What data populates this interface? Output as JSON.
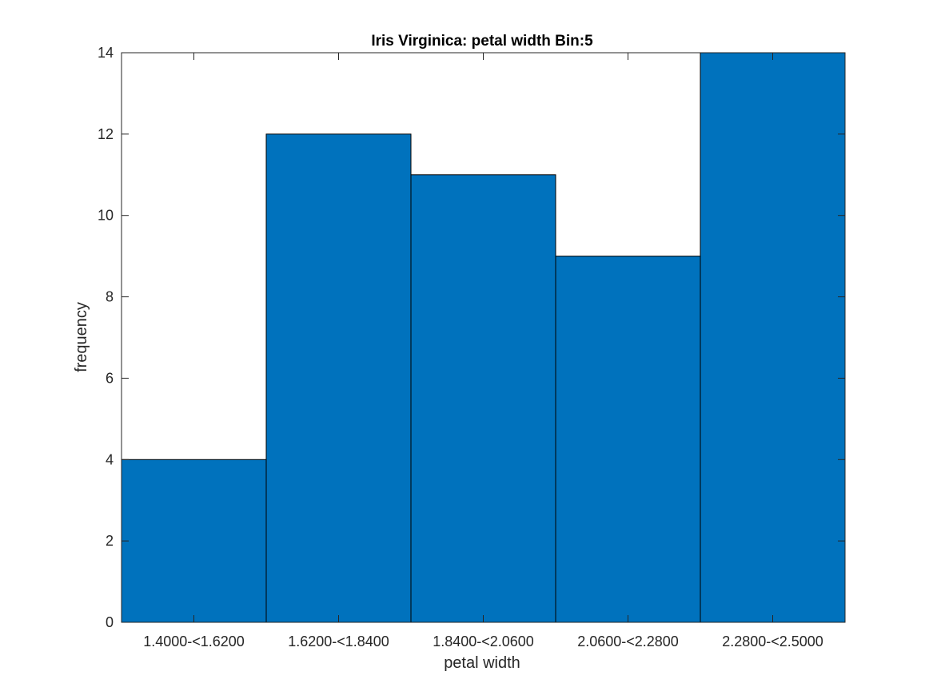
{
  "chart_data": {
    "type": "bar",
    "title": "Iris Virginica: petal width Bin:5",
    "xlabel": "petal width",
    "ylabel": "frequency",
    "categories": [
      "1.4000-<1.6200",
      "1.6200-<1.8400",
      "1.8400-<2.0600",
      "2.0600-<2.2800",
      "2.2800-<2.5000"
    ],
    "values": [
      4,
      12,
      11,
      9,
      14
    ],
    "ylim": [
      0,
      14
    ],
    "yticks": [
      "0",
      "2",
      "4",
      "6",
      "8",
      "10",
      "12",
      "14"
    ],
    "grid": false,
    "bar_color": "#0072BD",
    "edge_color": "#000000"
  }
}
